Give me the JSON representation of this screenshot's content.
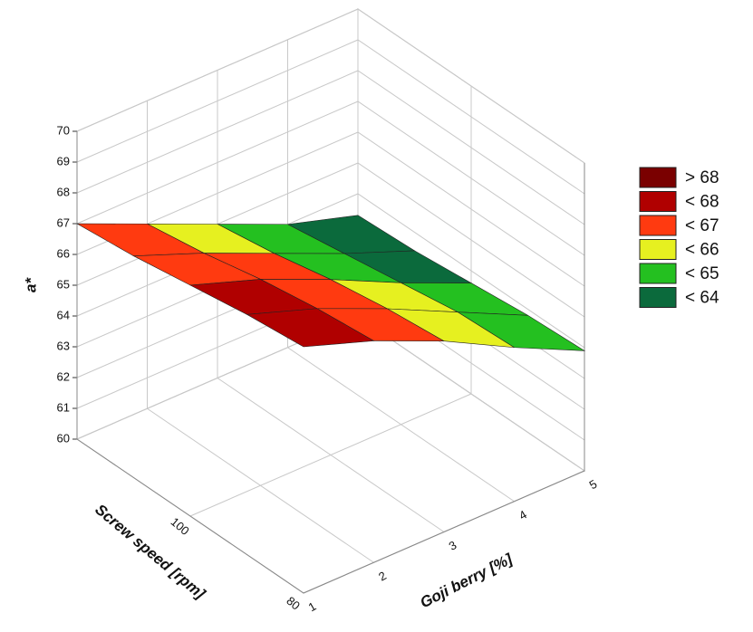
{
  "chart_data": {
    "type": "surface3d",
    "zlabel": "a*",
    "xlabel": "Goji berry [%]",
    "ylabel": "Screw speed [rpm]",
    "x": [
      1,
      2,
      3,
      4,
      5
    ],
    "y": [
      80,
      90,
      100,
      110,
      120
    ],
    "z": [
      [
        68.0,
        67.2,
        66.2,
        65.0,
        63.9
      ],
      [
        67.8,
        67.0,
        66.0,
        64.9,
        63.8
      ],
      [
        67.5,
        66.7,
        65.7,
        64.6,
        63.6
      ],
      [
        67.2,
        66.3,
        65.3,
        64.3,
        63.4
      ],
      [
        67.0,
        66.0,
        65.0,
        64.0,
        63.3
      ]
    ],
    "xlim": [
      1,
      5
    ],
    "ylim": [
      80,
      120
    ],
    "zlim": [
      60,
      70
    ],
    "xticks": [
      1,
      2,
      3,
      4,
      5
    ],
    "yticks": [
      80,
      100
    ],
    "zticks": [
      60,
      61,
      62,
      63,
      64,
      65,
      66,
      67,
      68,
      69,
      70
    ],
    "grid": true,
    "legend": [
      {
        "value": 68,
        "label": "> 68",
        "color": "#7a0000"
      },
      {
        "value": 68,
        "label": "< 68",
        "color": "#b00000"
      },
      {
        "value": 67,
        "label": "< 67",
        "color": "#ff3a10"
      },
      {
        "value": 66,
        "label": "< 66",
        "color": "#e6f020"
      },
      {
        "value": 65,
        "label": "< 65",
        "color": "#24c020"
      },
      {
        "value": 64,
        "label": "< 64",
        "color": "#0b6a3c"
      }
    ]
  }
}
